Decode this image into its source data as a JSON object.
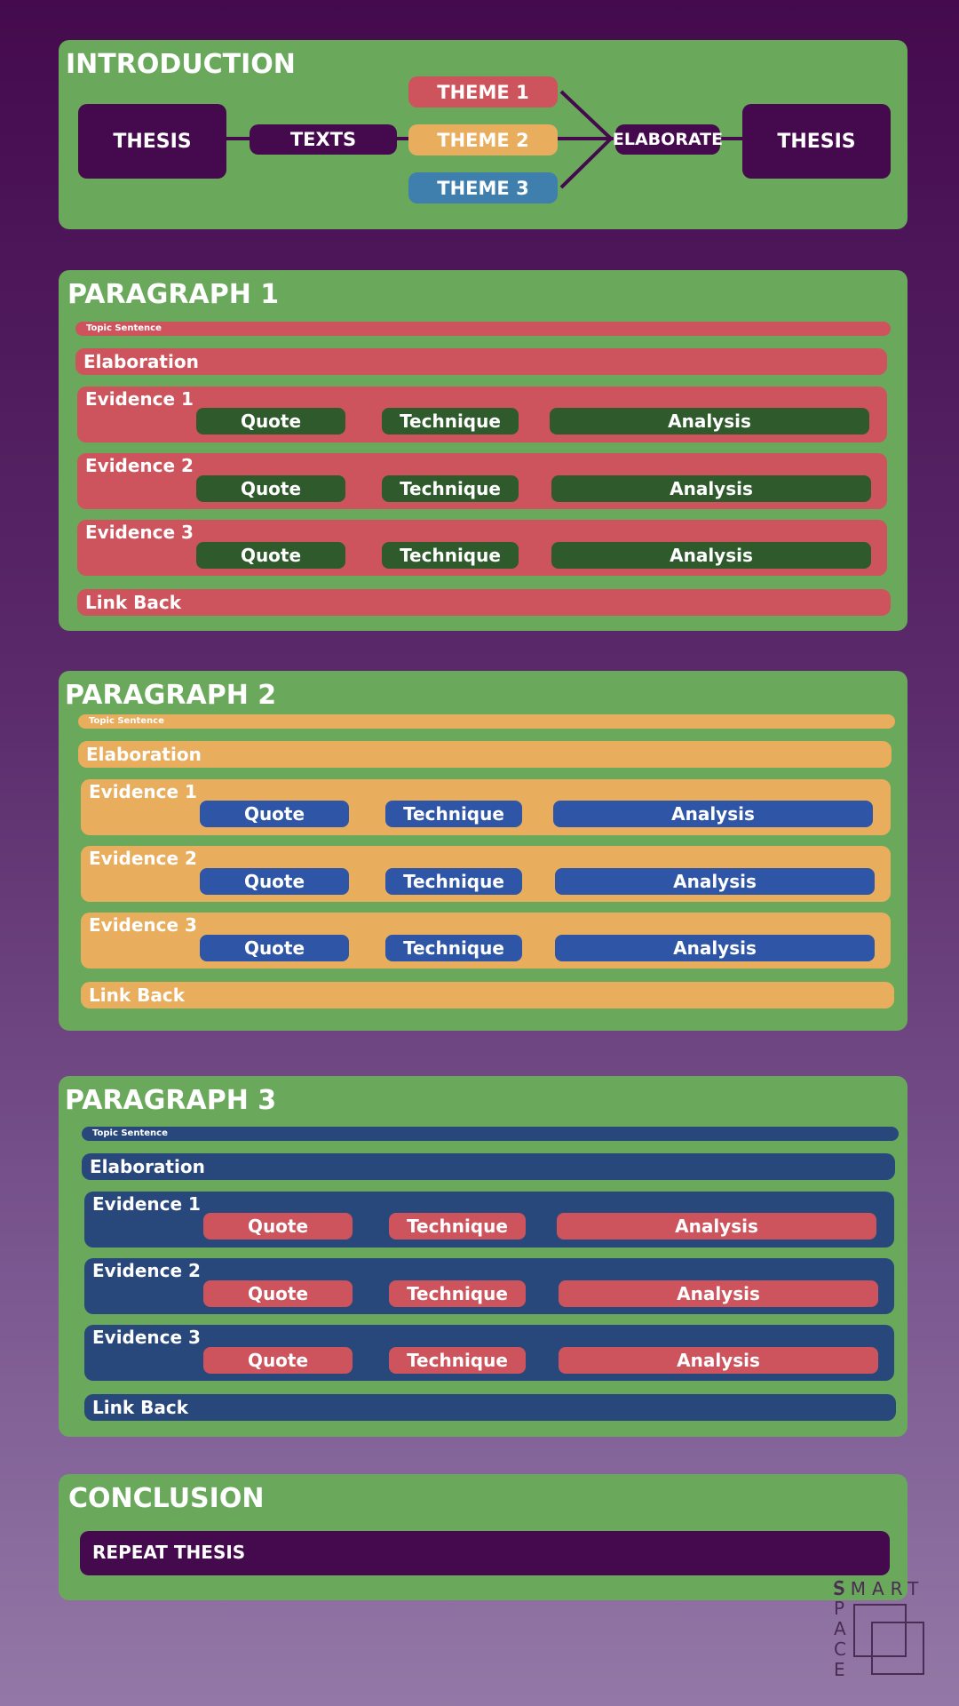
{
  "introduction": {
    "title": "INTRODUCTION",
    "thesis_left": "THESIS",
    "texts": "TEXTS",
    "themes": [
      "THEME 1",
      "THEME 2",
      "THEME 3"
    ],
    "elaborate": "ELABORATE",
    "thesis_right": "THESIS"
  },
  "paragraphs": [
    {
      "title": "PARAGRAPH 1",
      "topic_sentence": "Topic Sentence",
      "elaboration": "Elaboration",
      "evidence": [
        {
          "label": "Evidence 1",
          "quote": "Quote",
          "technique": "Technique",
          "analysis": "Analysis"
        },
        {
          "label": "Evidence 2",
          "quote": "Quote",
          "technique": "Technique",
          "analysis": "Analysis"
        },
        {
          "label": "Evidence 3",
          "quote": "Quote",
          "technique": "Technique",
          "analysis": "Analysis"
        }
      ],
      "link_back": "Link Back"
    },
    {
      "title": "PARAGRAPH 2",
      "topic_sentence": "Topic Sentence",
      "elaboration": "Elaboration",
      "evidence": [
        {
          "label": "Evidence 1",
          "quote": "Quote",
          "technique": "Technique",
          "analysis": "Analysis"
        },
        {
          "label": "Evidence 2",
          "quote": "Quote",
          "technique": "Technique",
          "analysis": "Analysis"
        },
        {
          "label": "Evidence 3",
          "quote": "Quote",
          "technique": "Technique",
          "analysis": "Analysis"
        }
      ],
      "link_back": "Link Back"
    },
    {
      "title": "PARAGRAPH 3",
      "topic_sentence": "Topic Sentence",
      "elaboration": "Elaboration",
      "evidence": [
        {
          "label": "Evidence 1",
          "quote": "Quote",
          "technique": "Technique",
          "analysis": "Analysis"
        },
        {
          "label": "Evidence 2",
          "quote": "Quote",
          "technique": "Technique",
          "analysis": "Analysis"
        },
        {
          "label": "Evidence 3",
          "quote": "Quote",
          "technique": "Technique",
          "analysis": "Analysis"
        }
      ],
      "link_back": "Link Back"
    }
  ],
  "conclusion": {
    "title": "CONCLUSION",
    "repeat_thesis": "REPEAT THESIS"
  },
  "logo": {
    "word_top": "SMART",
    "word_side": "SPACE"
  },
  "colors": {
    "panel_green": "#6aa85b",
    "dark_purple": "#440a4d",
    "red": "#cd545c",
    "orange": "#e9ad5e",
    "blue": "#2f56a6",
    "navy": "#28487c",
    "dark_green": "#2e5a2c",
    "theme3_blue": "#3f7fae"
  }
}
